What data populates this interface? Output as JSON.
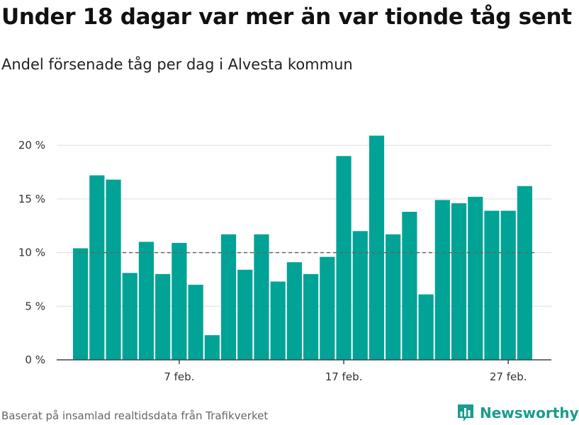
{
  "title": "Under 18 dagar var mer än var tionde tåg sent",
  "subtitle": "Andel försenade tåg per dag i Alvesta kommun",
  "source": "Baserat på insamlad realtidsdata från Trafikverket",
  "brand": {
    "label": "Newsworthy",
    "icon": "newsworthy-logo-icon"
  },
  "colors": {
    "bar": "#00a396",
    "grid": "#dddddd",
    "threshold": "#666666",
    "axis": "#444444"
  },
  "chart_data": {
    "type": "bar",
    "title": "Under 18 dagar var mer än var tionde tåg sent",
    "subtitle": "Andel försenade tåg per dag i Alvesta kommun",
    "x": [
      "2024-02-01",
      "2024-02-02",
      "2024-02-03",
      "2024-02-04",
      "2024-02-05",
      "2024-02-06",
      "2024-02-07",
      "2024-02-08",
      "2024-02-09",
      "2024-02-10",
      "2024-02-11",
      "2024-02-12",
      "2024-02-13",
      "2024-02-14",
      "2024-02-15",
      "2024-02-16",
      "2024-02-17",
      "2024-02-18",
      "2024-02-19",
      "2024-02-20",
      "2024-02-21",
      "2024-02-22",
      "2024-02-23",
      "2024-02-24",
      "2024-02-25",
      "2024-02-26",
      "2024-02-27",
      "2024-02-28"
    ],
    "values": [
      10.4,
      17.2,
      16.8,
      8.1,
      11.0,
      8.0,
      10.9,
      7.0,
      2.3,
      11.7,
      8.4,
      11.7,
      7.3,
      9.1,
      8.0,
      9.6,
      19.0,
      12.0,
      20.9,
      11.7,
      13.8,
      6.1,
      14.9,
      14.6,
      15.2,
      13.9,
      13.9,
      16.2
    ],
    "unit": "%",
    "ylim": [
      0,
      21
    ],
    "yticks": [
      0,
      5,
      10,
      15,
      20
    ],
    "ytick_labels": [
      "0 %",
      "5 %",
      "10 %",
      "15 %",
      "20 %"
    ],
    "xtick_labels": [
      {
        "date": "2024-02-07",
        "label": "7 feb."
      },
      {
        "date": "2024-02-17",
        "label": "17 feb."
      },
      {
        "date": "2024-02-27",
        "label": "27 feb."
      }
    ],
    "threshold": {
      "value": 10,
      "style": "dashed"
    },
    "grid": true,
    "legend": "none"
  }
}
